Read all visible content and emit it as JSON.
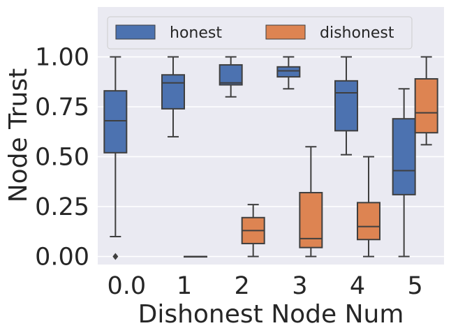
{
  "chart_data": {
    "type": "boxplot",
    "title": "",
    "xlabel": "Dishonest Node Num",
    "ylabel": "Node Trust",
    "categories": [
      "0.0",
      "1",
      "2",
      "3",
      "4",
      "5"
    ],
    "ylim": [
      -0.04,
      1.25
    ],
    "yticks": [
      0.0,
      0.25,
      0.5,
      0.75,
      1.0
    ],
    "ytick_labels": [
      "0.00",
      "0.25",
      "0.50",
      "0.75",
      "1.00"
    ],
    "grid": true,
    "legend": {
      "position": "top",
      "entries": [
        "honest",
        "dishonest"
      ]
    },
    "series": [
      {
        "name": "honest",
        "color": "#4c72b0",
        "boxes": [
          {
            "category": "0.0",
            "whisker_low": 0.1,
            "q1": 0.52,
            "median": 0.68,
            "q3": 0.83,
            "whisker_high": 1.0,
            "outliers": [
              0.0
            ]
          },
          {
            "category": "1",
            "whisker_low": 0.6,
            "q1": 0.74,
            "median": 0.87,
            "q3": 0.91,
            "whisker_high": 1.0,
            "outliers": []
          },
          {
            "category": "2",
            "whisker_low": 0.8,
            "q1": 0.86,
            "median": 0.87,
            "q3": 0.96,
            "whisker_high": 1.0,
            "outliers": []
          },
          {
            "category": "3",
            "whisker_low": 0.84,
            "q1": 0.9,
            "median": 0.93,
            "q3": 0.95,
            "whisker_high": 1.0,
            "outliers": []
          },
          {
            "category": "4",
            "whisker_low": 0.51,
            "q1": 0.63,
            "median": 0.82,
            "q3": 0.88,
            "whisker_high": 1.0,
            "outliers": []
          },
          {
            "category": "5",
            "whisker_low": 0.0,
            "q1": 0.31,
            "median": 0.43,
            "q3": 0.69,
            "whisker_high": 0.84,
            "outliers": []
          }
        ]
      },
      {
        "name": "dishonest",
        "color": "#dd8452",
        "boxes": [
          {
            "category": "1",
            "whisker_low": 0.0,
            "q1": 0.0,
            "median": 0.0,
            "q3": 0.0,
            "whisker_high": 0.0,
            "outliers": []
          },
          {
            "category": "2",
            "whisker_low": 0.0,
            "q1": 0.065,
            "median": 0.13,
            "q3": 0.195,
            "whisker_high": 0.26,
            "outliers": []
          },
          {
            "category": "3",
            "whisker_low": 0.0,
            "q1": 0.045,
            "median": 0.09,
            "q3": 0.32,
            "whisker_high": 0.55,
            "outliers": []
          },
          {
            "category": "4",
            "whisker_low": 0.0,
            "q1": 0.085,
            "median": 0.15,
            "q3": 0.27,
            "whisker_high": 0.5,
            "outliers": []
          },
          {
            "category": "5",
            "whisker_low": 0.56,
            "q1": 0.62,
            "median": 0.72,
            "q3": 0.89,
            "whisker_high": 1.0,
            "outliers": []
          }
        ]
      }
    ]
  }
}
